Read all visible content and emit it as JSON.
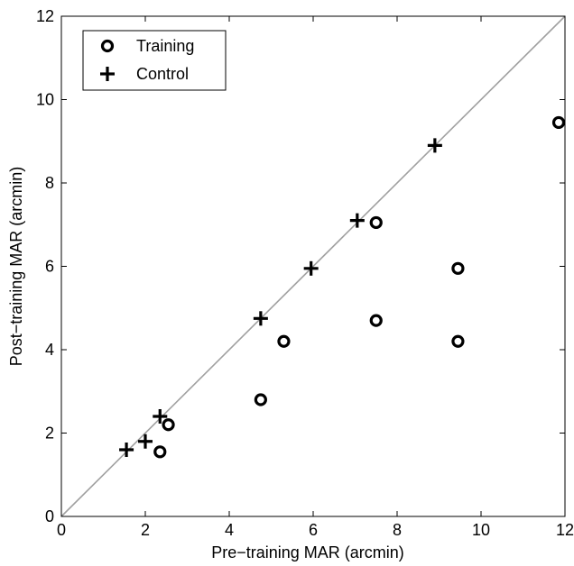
{
  "chart_data": {
    "type": "scatter",
    "title": "",
    "xlabel": "Pre−training MAR (arcmin)",
    "ylabel": "Post−training MAR (arcmin)",
    "xlim": [
      0,
      12
    ],
    "ylim": [
      0,
      12
    ],
    "xticks": [
      "0",
      "2",
      "4",
      "6",
      "8",
      "10",
      "12"
    ],
    "yticks": [
      "0",
      "2",
      "4",
      "6",
      "8",
      "10",
      "12"
    ],
    "grid": false,
    "legend_position": "top-left",
    "reference_line": {
      "type": "identity",
      "color": "#a0a0a0"
    },
    "series": [
      {
        "name": "Training",
        "marker": "circle",
        "color": "#000000",
        "points": [
          {
            "x": 2.35,
            "y": 1.55
          },
          {
            "x": 2.55,
            "y": 2.2
          },
          {
            "x": 4.75,
            "y": 2.8
          },
          {
            "x": 5.3,
            "y": 4.2
          },
          {
            "x": 7.5,
            "y": 7.05
          },
          {
            "x": 7.5,
            "y": 4.7
          },
          {
            "x": 9.45,
            "y": 5.95
          },
          {
            "x": 9.45,
            "y": 4.2
          },
          {
            "x": 11.85,
            "y": 9.45
          }
        ]
      },
      {
        "name": "Control",
        "marker": "plus",
        "color": "#000000",
        "points": [
          {
            "x": 1.55,
            "y": 1.6
          },
          {
            "x": 2.0,
            "y": 1.8
          },
          {
            "x": 2.35,
            "y": 2.4
          },
          {
            "x": 4.75,
            "y": 4.75
          },
          {
            "x": 5.95,
            "y": 5.95
          },
          {
            "x": 7.05,
            "y": 7.1
          },
          {
            "x": 8.9,
            "y": 8.9
          }
        ]
      }
    ]
  }
}
